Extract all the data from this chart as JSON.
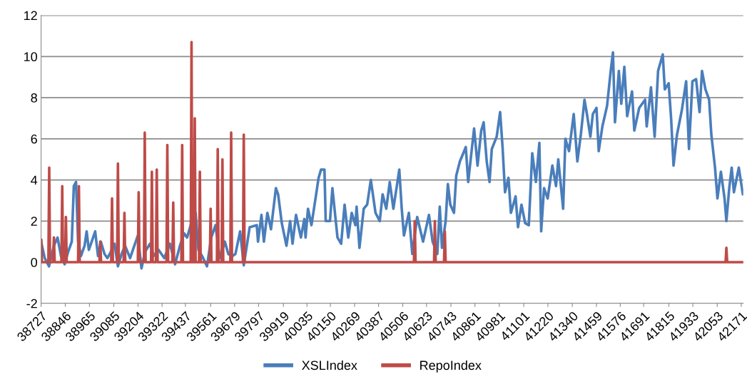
{
  "chart_data": {
    "type": "line",
    "xlim": [
      38727,
      42181
    ],
    "xticks": [
      38727,
      38846,
      38965,
      39085,
      39204,
      39322,
      39437,
      39561,
      39679,
      39797,
      39919,
      40035,
      40150,
      40269,
      40387,
      40506,
      40623,
      40743,
      40861,
      40981,
      41101,
      41220,
      41340,
      41459,
      41576,
      41691,
      41815,
      41933,
      42053,
      42171
    ],
    "ylim": [
      -2,
      12
    ],
    "yticks": [
      -2,
      0,
      2,
      4,
      6,
      8,
      10,
      12
    ],
    "grid": "y",
    "legend": "bottom",
    "line_style": "solid",
    "marker": "none",
    "series": [
      {
        "name": "XSLIndex",
        "color": "#4a7ebb",
        "x": [
          38727,
          38745,
          38766,
          38790,
          38808,
          38825,
          38843,
          38860,
          38878,
          38888,
          38899,
          38909,
          38923,
          38941,
          38951,
          38962,
          38976,
          38993,
          39007,
          39021,
          39039,
          39053,
          39070,
          39088,
          39105,
          39123,
          39140,
          39165,
          39182,
          39203,
          39221,
          39238,
          39263,
          39280,
          39305,
          39333,
          39361,
          39386,
          39410,
          39431,
          39445,
          39466,
          39487,
          39501,
          39519,
          39543,
          39564,
          39585,
          39606,
          39631,
          39648,
          39669,
          39683,
          39706,
          39724,
          39753,
          39788,
          39794,
          39811,
          39823,
          39840,
          39858,
          39882,
          39893,
          39911,
          39934,
          39952,
          39964,
          39981,
          40005,
          40022,
          40028,
          40040,
          40057,
          40080,
          40092,
          40104,
          40121,
          40127,
          40148,
          40160,
          40185,
          40203,
          40220,
          40238,
          40255,
          40273,
          40279,
          40293,
          40314,
          40331,
          40349,
          40372,
          40393,
          40407,
          40425,
          40442,
          40460,
          40489,
          40501,
          40512,
          40536,
          40553,
          40577,
          40606,
          40635,
          40653,
          40676,
          40688,
          40699,
          40717,
          40728,
          40740,
          40758,
          40769,
          40787,
          40804,
          40816,
          40828,
          40839,
          40857,
          40874,
          40892,
          40904,
          40919,
          40933,
          40944,
          40968,
          40985,
          40997,
          41009,
          41026,
          41038,
          41061,
          41073,
          41090,
          41108,
          41126,
          41143,
          41161,
          41178,
          41187,
          41201,
          41219,
          41242,
          41260,
          41271,
          41295,
          41306,
          41324,
          41347,
          41365,
          41382,
          41400,
          41412,
          41429,
          41441,
          41459,
          41470,
          41488,
          41511,
          41529,
          41540,
          41550,
          41569,
          41581,
          41596,
          41610,
          41634,
          41645,
          41669,
          41698,
          41706,
          41727,
          41745,
          41762,
          41785,
          41795,
          41814,
          41826,
          41838,
          41855,
          41879,
          41900,
          41914,
          41931,
          41949,
          41966,
          41978,
          41995,
          42013,
          42024,
          42042,
          42054,
          42071,
          42089,
          42098,
          42112,
          42124,
          42135,
          42159,
          42179
        ],
        "values": [
          1.0,
          0.2,
          -0.2,
          0.8,
          1.2,
          0.3,
          -0.1,
          0.5,
          1.0,
          3.7,
          3.9,
          1.0,
          0.3,
          0.8,
          1.5,
          0.6,
          1.0,
          1.5,
          0.3,
          1.0,
          0.4,
          0.2,
          0.5,
          0.9,
          -0.2,
          0.4,
          0.8,
          0.2,
          0.7,
          1.3,
          -0.3,
          0.5,
          0.9,
          0.3,
          0.6,
          0.2,
          0.9,
          -0.1,
          0.8,
          1.4,
          1.2,
          1.9,
          2.4,
          0.6,
          0.3,
          -0.2,
          1.2,
          1.8,
          0.2,
          1.0,
          0.4,
          0.3,
          0.4,
          1.5,
          -0.15,
          1.7,
          1.8,
          1.0,
          2.3,
          1.0,
          2.4,
          1.6,
          3.6,
          3.3,
          1.9,
          0.8,
          2.0,
          0.9,
          2.3,
          1.2,
          2.1,
          1.2,
          2.6,
          1.8,
          3.3,
          4.1,
          4.5,
          4.5,
          2.0,
          2.0,
          3.6,
          1.2,
          0.9,
          2.8,
          1.2,
          2.4,
          1.8,
          2.7,
          0.7,
          2.6,
          2.8,
          4.0,
          2.4,
          2.0,
          3.3,
          2.6,
          3.9,
          2.6,
          4.5,
          2.6,
          1.3,
          2.4,
          0.4,
          2.2,
          1.0,
          2.3,
          1.0,
          0.4,
          2.7,
          0.7,
          2.0,
          3.8,
          2.8,
          2.4,
          4.2,
          4.9,
          5.3,
          5.6,
          3.9,
          4.9,
          6.5,
          4.7,
          6.4,
          6.8,
          4.9,
          3.9,
          5.5,
          6.1,
          7.3,
          5.6,
          3.4,
          4.1,
          2.4,
          3.2,
          1.7,
          2.8,
          1.9,
          1.8,
          5.3,
          3.9,
          5.8,
          1.5,
          3.6,
          3.1,
          4.7,
          3.7,
          5.0,
          2.6,
          6.0,
          5.4,
          7.2,
          4.9,
          6.2,
          7.9,
          7.2,
          6.1,
          7.2,
          7.5,
          5.4,
          6.6,
          7.6,
          9.3,
          10.2,
          6.8,
          9.3,
          7.7,
          9.5,
          7.1,
          8.3,
          6.4,
          7.5,
          7.9,
          6.6,
          8.5,
          6.1,
          9.3,
          10.1,
          8.4,
          8.7,
          7.0,
          4.7,
          6.2,
          7.4,
          8.8,
          5.5,
          8.8,
          8.9,
          7.3,
          9.3,
          8.4,
          7.9,
          6.2,
          4.6,
          3.1,
          4.4,
          3.1,
          2.0,
          3.6,
          4.6,
          3.4,
          4.6,
          3.3
        ]
      },
      {
        "name": "RepoIndex",
        "color": "#be4b48",
        "x": [
          38727,
          38728,
          38731,
          38763,
          38767,
          38771,
          38786,
          38790,
          38794,
          38827,
          38831,
          38835,
          38845,
          38849,
          38853,
          38909,
          38913,
          38917,
          39014,
          39018,
          39022,
          39072,
          39076,
          39080,
          39101,
          39105,
          39109,
          39133,
          39137,
          39141,
          39203,
          39207,
          39211,
          39233,
          39237,
          39241,
          39268,
          39272,
          39276,
          39292,
          39296,
          39300,
          39344,
          39348,
          39352,
          39373,
          39377,
          39381,
          39417,
          39421,
          39425,
          39463,
          39467,
          39471,
          39479,
          39483,
          39487,
          39504,
          39508,
          39512,
          39557,
          39561,
          39565,
          39592,
          39596,
          39600,
          39615,
          39619,
          39623,
          39658,
          39662,
          39666,
          39720,
          39724,
          39728,
          40561,
          40565,
          40569,
          40660,
          40664,
          40668,
          40709,
          40713,
          40717,
          42094,
          42098,
          42102,
          42181
        ],
        "values": [
          0,
          1.1,
          0,
          0,
          4.6,
          0,
          0,
          1.2,
          0,
          0,
          3.7,
          0,
          0,
          2.2,
          0,
          0,
          3.7,
          0,
          0,
          1.0,
          0,
          0,
          3.1,
          0,
          0,
          4.8,
          0,
          0,
          2.4,
          0,
          0,
          3.4,
          0,
          0,
          6.3,
          0,
          0,
          4.4,
          0,
          0,
          4.5,
          0,
          0,
          5.7,
          0,
          0,
          2.9,
          0,
          0,
          5.7,
          0,
          0,
          10.7,
          0,
          0,
          7.0,
          0,
          0,
          4.4,
          0,
          0,
          2.6,
          0,
          0,
          5.5,
          0,
          0,
          5.0,
          0,
          0,
          6.3,
          0,
          0,
          6.2,
          0,
          0,
          2.0,
          0,
          0,
          2.0,
          0,
          0,
          1.5,
          0,
          0,
          0.7,
          0,
          0
        ]
      }
    ]
  }
}
